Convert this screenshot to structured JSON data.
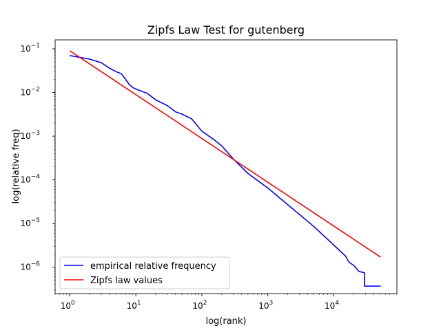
{
  "chart_data": {
    "type": "line",
    "title": "Zipfs Law Test for gutenberg",
    "xlabel": "log(rank)",
    "ylabel": "log(relative freq)",
    "xscale": "log",
    "yscale": "log",
    "xlim": [
      0.6,
      90000
    ],
    "ylim": [
      2.5e-07,
      0.16
    ],
    "x_ticks": [
      {
        "value": 1,
        "base": "10",
        "exp": "0"
      },
      {
        "value": 10,
        "base": "10",
        "exp": "1"
      },
      {
        "value": 100,
        "base": "10",
        "exp": "2"
      },
      {
        "value": 1000,
        "base": "10",
        "exp": "3"
      },
      {
        "value": 10000,
        "base": "10",
        "exp": "4"
      }
    ],
    "y_ticks": [
      {
        "value": 0.1,
        "base": "10",
        "exp": "−1"
      },
      {
        "value": 0.01,
        "base": "10",
        "exp": "−2"
      },
      {
        "value": 0.001,
        "base": "10",
        "exp": "−3"
      },
      {
        "value": 0.0001,
        "base": "10",
        "exp": "−4"
      },
      {
        "value": 1e-05,
        "base": "10",
        "exp": "−5"
      },
      {
        "value": 1e-06,
        "base": "10",
        "exp": "−6"
      }
    ],
    "grid": false,
    "legend_position": "lower-left",
    "series": [
      {
        "name": "empirical relative frequency",
        "color": "#0000ff",
        "x": [
          1,
          2,
          3,
          4,
          5,
          6,
          7,
          8,
          9,
          10,
          15,
          20,
          30,
          40,
          50,
          70,
          100,
          150,
          200,
          300,
          500,
          1000,
          2000,
          5000,
          10000,
          15000,
          17000,
          20000,
          24000,
          29000,
          29000,
          51000
        ],
        "y": [
          0.07,
          0.058,
          0.048,
          0.036,
          0.03,
          0.027,
          0.02,
          0.015,
          0.013,
          0.012,
          0.0095,
          0.0068,
          0.005,
          0.0036,
          0.0032,
          0.0025,
          0.0013,
          0.00085,
          0.0006,
          0.0003,
          0.00014,
          6.5e-05,
          2.7e-05,
          8.5e-06,
          3.2e-06,
          1.8e-06,
          1.3e-06,
          1.1e-06,
          8e-07,
          7.5e-07,
          3.7e-07,
          3.7e-07
        ]
      },
      {
        "name": "Zipfs law values",
        "color": "#ff0000",
        "x": [
          1,
          51000
        ],
        "y": [
          0.09,
          1.7e-06
        ]
      }
    ]
  }
}
